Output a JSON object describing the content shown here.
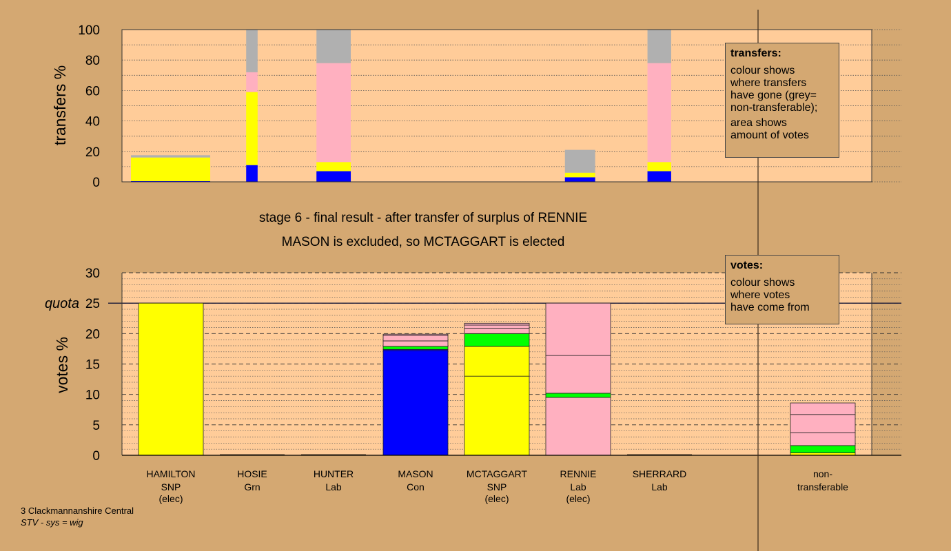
{
  "captions": {
    "stage": "stage 6 - final result - after transfer of surplus of RENNIE",
    "outcome": "MASON is excluded, so MCTAGGART is elected"
  },
  "footer": {
    "ward": "3 Clackmannanshire Central",
    "system": "STV - sys = wig"
  },
  "legends": {
    "transfers": {
      "title": "transfers:",
      "line1": "colour shows\nwhere transfers\nhave gone (grey=\nnon-transferable);",
      "line2": "area shows\namount of votes"
    },
    "votes": {
      "title": "votes:",
      "line1": "colour shows\nwhere votes\nhave come from"
    }
  },
  "colors": {
    "background": "#d4a872",
    "plot": "#ffcc99",
    "yellow": "#ffff00",
    "blue": "#0000ff",
    "pink": "#ffb0c0",
    "green": "#00ff00",
    "grey": "#b0b0b0"
  },
  "chart_data": [
    {
      "type": "bar",
      "ylabel": "transfers %",
      "ylim": [
        0,
        100
      ],
      "yticks": [
        0,
        20,
        40,
        60,
        80,
        100
      ],
      "grid": true,
      "legend_placement": "top-right",
      "bars": [
        {
          "segments": [
            {
              "color": "blue",
              "value": 0.5
            },
            {
              "color": "yellow",
              "value": 15.5
            },
            {
              "color": "grey",
              "value": 1.5
            }
          ],
          "start": 0.14,
          "end": 1.11
        },
        {
          "segments": [
            {
              "color": "blue",
              "value": 11
            },
            {
              "color": "yellow",
              "value": 48
            },
            {
              "color": "pink",
              "value": 13
            },
            {
              "color": "grey",
              "value": 28
            }
          ],
          "start": 1.55,
          "end": 1.69
        },
        {
          "segments": [
            {
              "color": "blue",
              "value": 7
            },
            {
              "color": "yellow",
              "value": 6
            },
            {
              "color": "pink",
              "value": 65
            },
            {
              "color": "grey",
              "value": 22
            }
          ],
          "start": 2.41,
          "end": 2.83
        },
        {
          "segments": [
            {
              "color": "blue",
              "value": 3
            },
            {
              "color": "yellow",
              "value": 3
            },
            {
              "color": "grey",
              "value": 15
            }
          ],
          "start": 5.45,
          "end": 5.82
        },
        {
          "segments": [
            {
              "color": "blue",
              "value": 7
            },
            {
              "color": "yellow",
              "value": 6
            },
            {
              "color": "pink",
              "value": 65
            },
            {
              "color": "grey",
              "value": 22
            }
          ],
          "start": 6.46,
          "end": 6.75
        }
      ]
    },
    {
      "type": "bar",
      "ylabel": "votes %",
      "ylim": [
        0,
        30
      ],
      "yticks": [
        0,
        5,
        10,
        15,
        20,
        25,
        30
      ],
      "quota": 25,
      "quota_label": "quota",
      "grid": true,
      "legend_placement": "top-right",
      "categories": [
        {
          "name": "HAMILTON",
          "party": "SNP",
          "status": "(elec)"
        },
        {
          "name": "HOSIE",
          "party": "Grn",
          "status": ""
        },
        {
          "name": "HUNTER",
          "party": "Lab",
          "status": ""
        },
        {
          "name": "MASON",
          "party": "Con",
          "status": ""
        },
        {
          "name": "MCTAGGART",
          "party": "SNP",
          "status": "(elec)"
        },
        {
          "name": "RENNIE",
          "party": "Lab",
          "status": "(elec)"
        },
        {
          "name": "SHERRARD",
          "party": "Lab",
          "status": ""
        },
        {
          "name": "non-",
          "party": "transferable",
          "status": ""
        }
      ],
      "stacks": [
        [
          {
            "color": "yellow",
            "value": 25
          }
        ],
        [],
        [],
        [
          {
            "color": "blue",
            "value": 17.2
          },
          {
            "color": "blue",
            "value": 0.2
          },
          {
            "color": "green",
            "value": 0.5
          },
          {
            "color": "pink",
            "value": 0.9
          },
          {
            "color": "pink",
            "value": 0.9
          },
          {
            "color": "pink",
            "value": 0.2
          }
        ],
        [
          {
            "color": "yellow",
            "value": 13
          },
          {
            "color": "yellow",
            "value": 4.9
          },
          {
            "color": "green",
            "value": 2.1
          },
          {
            "color": "pink",
            "value": 0.9
          },
          {
            "color": "pink",
            "value": 0.5
          },
          {
            "color": "pink",
            "value": 0.3
          }
        ],
        [
          {
            "color": "pink",
            "value": 9.5
          },
          {
            "color": "green",
            "value": 0.7
          },
          {
            "color": "pink",
            "value": 6.2
          },
          {
            "color": "pink",
            "value": 8.6
          }
        ],
        [],
        [
          {
            "color": "yellow",
            "value": 0.4
          },
          {
            "color": "green",
            "value": 1.2
          },
          {
            "color": "pink",
            "value": 2.1
          },
          {
            "color": "pink",
            "value": 3.0
          },
          {
            "color": "pink",
            "value": 1.9
          }
        ]
      ]
    }
  ]
}
